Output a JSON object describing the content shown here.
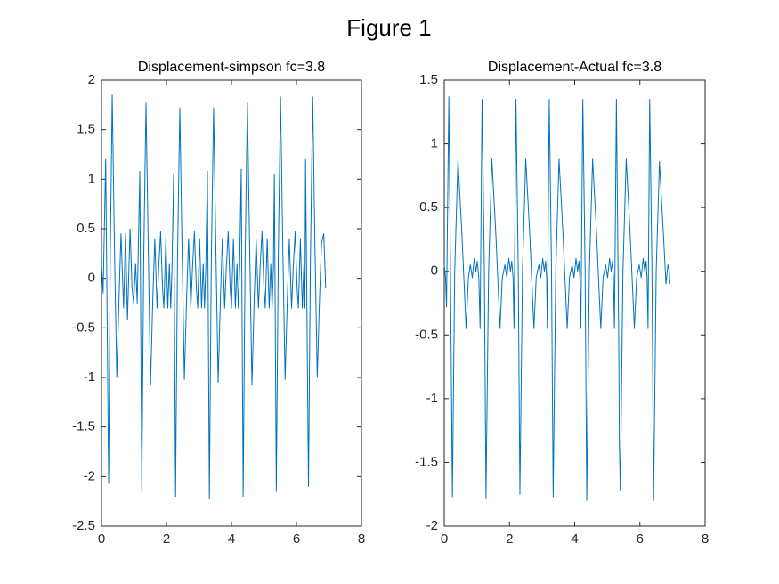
{
  "figure_title": "Figure 1",
  "chart_data": [
    {
      "type": "line",
      "title": "Displacement-simpson fc=3.8",
      "x": [
        0,
        0.05,
        0.13,
        0.22,
        0.27,
        0.33,
        0.4,
        0.47,
        0.54,
        0.6,
        0.68,
        0.74,
        0.8,
        0.88,
        0.94,
        0.99,
        1.05,
        1.1,
        1.18,
        1.24,
        1.3,
        1.37,
        1.44,
        1.51,
        1.58,
        1.64,
        1.71,
        1.76,
        1.82,
        1.88,
        1.92,
        1.98,
        2.04,
        2.09,
        2.13,
        2.17,
        2.22,
        2.28,
        2.34,
        2.41,
        2.48,
        2.55,
        2.62,
        2.68,
        2.75,
        2.8,
        2.86,
        2.92,
        2.96,
        3.02,
        3.08,
        3.13,
        3.17,
        3.21,
        3.26,
        3.32,
        3.38,
        3.45,
        3.52,
        3.59,
        3.66,
        3.72,
        3.79,
        3.84,
        3.9,
        3.96,
        4.0,
        4.06,
        4.12,
        4.17,
        4.21,
        4.25,
        4.3,
        4.36,
        4.42,
        4.49,
        4.56,
        4.63,
        4.7,
        4.76,
        4.83,
        4.88,
        4.94,
        5.0,
        5.04,
        5.1,
        5.16,
        5.21,
        5.25,
        5.29,
        5.32,
        5.38,
        5.44,
        5.51,
        5.58,
        5.65,
        5.72,
        5.78,
        5.85,
        5.9,
        5.96,
        6.02,
        6.06,
        6.12,
        6.18,
        6.23,
        6.26,
        6.28,
        6.37,
        6.43,
        6.5,
        6.57,
        6.64,
        6.71,
        6.77,
        6.84,
        6.9
      ],
      "series": [
        {
          "color": "#0072bd",
          "values": [
            0.15,
            -0.15,
            1.2,
            -2.07,
            0.2,
            1.85,
            0.3,
            -1.0,
            -0.2,
            0.45,
            -0.3,
            0.45,
            -0.42,
            0.5,
            -0.1,
            -0.25,
            0.15,
            -0.25,
            1.08,
            -2.15,
            0.2,
            1.77,
            0.3,
            -1.08,
            -0.2,
            0.4,
            -0.3,
            0.1,
            0.47,
            -0.1,
            -0.3,
            0.4,
            -0.3,
            0.15,
            -0.3,
            0.1,
            1.05,
            -2.2,
            0.2,
            1.72,
            0.3,
            -1.02,
            -0.2,
            0.4,
            -0.3,
            0.1,
            0.47,
            -0.1,
            -0.3,
            0.4,
            -0.3,
            0.15,
            -0.3,
            0.1,
            1.08,
            -2.22,
            0.2,
            1.72,
            0.3,
            -1.05,
            -0.2,
            0.4,
            -0.3,
            0.1,
            0.47,
            -0.1,
            -0.3,
            0.4,
            -0.3,
            0.15,
            -0.3,
            0.1,
            1.1,
            -2.2,
            0.2,
            1.77,
            0.3,
            -1.08,
            -0.2,
            0.4,
            -0.3,
            0.1,
            0.47,
            -0.1,
            -0.3,
            0.4,
            -0.3,
            0.15,
            -0.3,
            0.1,
            1.05,
            -2.15,
            0.2,
            1.83,
            0.3,
            -1.02,
            -0.2,
            0.4,
            -0.3,
            0.1,
            0.47,
            -0.1,
            -0.3,
            0.4,
            -0.3,
            0.15,
            -0.3,
            1.2,
            -2.1,
            0.2,
            1.83,
            0.3,
            -1.0,
            -0.2,
            0.35,
            0.45,
            -0.1
          ]
        }
      ],
      "xlim": [
        0,
        8
      ],
      "xticks": [
        0,
        2,
        4,
        6,
        8
      ],
      "ylim": [
        -2.5,
        2
      ],
      "yticks": [
        -2.5,
        -2,
        -1.5,
        -1,
        -0.5,
        0,
        0.5,
        1,
        1.5,
        2
      ]
    },
    {
      "type": "line",
      "title": "Displacement-Actual fc=3.8",
      "x": [
        0,
        0.04,
        0.07,
        0.14,
        0.19,
        0.25,
        0.32,
        0.42,
        0.54,
        0.67,
        0.74,
        0.8,
        0.86,
        0.92,
        0.97,
        1.01,
        1.06,
        1.1,
        1.16,
        1.23,
        1.28,
        1.36,
        1.46,
        1.58,
        1.71,
        1.78,
        1.86,
        1.92,
        1.98,
        2.03,
        2.07,
        2.11,
        2.14,
        2.2,
        2.27,
        2.32,
        2.4,
        2.5,
        2.62,
        2.75,
        2.82,
        2.9,
        2.96,
        3.02,
        3.07,
        3.11,
        3.14,
        3.16,
        3.22,
        3.29,
        3.34,
        3.42,
        3.52,
        3.64,
        3.77,
        3.84,
        3.92,
        3.98,
        4.04,
        4.09,
        4.13,
        4.16,
        4.19,
        4.25,
        4.32,
        4.37,
        4.45,
        4.55,
        4.67,
        4.8,
        4.87,
        4.95,
        5.01,
        5.07,
        5.12,
        5.16,
        5.19,
        5.22,
        5.28,
        5.35,
        5.37,
        5.4,
        5.48,
        5.58,
        5.7,
        5.83,
        5.9,
        5.98,
        6.04,
        6.1,
        6.15,
        6.19,
        6.22,
        6.25,
        6.3,
        6.37,
        6.42,
        6.5,
        6.6,
        6.72,
        6.8,
        6.86,
        6.9,
        6.92
      ],
      "series": [
        {
          "color": "#0072bd",
          "values": [
            0.05,
            -0.05,
            -0.28,
            1.37,
            0.0,
            -1.77,
            0.0,
            0.88,
            0.3,
            -0.45,
            -0.05,
            0.05,
            -0.05,
            0.1,
            0.0,
            0.08,
            -0.05,
            -0.45,
            1.35,
            0.0,
            -1.78,
            0.0,
            0.88,
            0.3,
            -0.45,
            -0.05,
            0.05,
            -0.05,
            0.1,
            0.0,
            0.08,
            -0.05,
            -0.45,
            1.35,
            0.0,
            -1.75,
            0.0,
            0.88,
            0.3,
            -0.45,
            -0.05,
            0.05,
            -0.05,
            0.1,
            0.0,
            0.08,
            -0.05,
            -0.45,
            1.35,
            0.0,
            -1.77,
            0.0,
            0.88,
            0.3,
            -0.45,
            -0.05,
            0.05,
            -0.05,
            0.1,
            0.0,
            0.08,
            -0.05,
            -0.45,
            1.35,
            0.0,
            -1.8,
            0.0,
            0.88,
            0.3,
            -0.45,
            -0.05,
            0.05,
            -0.05,
            0.1,
            0.0,
            0.08,
            -0.05,
            -0.45,
            1.35,
            -0.5,
            -1.35,
            -1.72,
            0.0,
            0.88,
            0.3,
            -0.45,
            -0.05,
            0.05,
            -0.05,
            0.1,
            0.0,
            0.08,
            -0.05,
            -0.45,
            1.35,
            0.0,
            -1.8,
            0.0,
            0.86,
            0.3,
            -0.1,
            0.05,
            0.0,
            -0.1
          ]
        }
      ],
      "xlim": [
        0,
        8
      ],
      "xticks": [
        0,
        2,
        4,
        6,
        8
      ],
      "ylim": [
        -2,
        1.5
      ],
      "yticks": [
        -2,
        -1.5,
        -1,
        -0.5,
        0,
        0.5,
        1,
        1.5
      ]
    }
  ]
}
